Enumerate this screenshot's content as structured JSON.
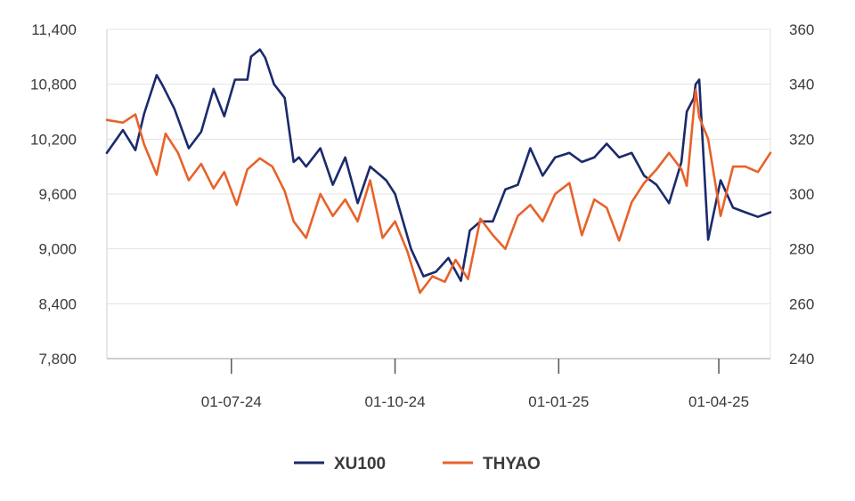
{
  "chart_data": {
    "type": "line",
    "title": "",
    "xlabel": "",
    "ylabel": "",
    "x_ticks": [
      "01-07-24",
      "01-10-24",
      "01-01-25",
      "01-04-25"
    ],
    "x_tick_dates": [
      "2024-07-01",
      "2024-10-01",
      "2025-01-01",
      "2025-04-01"
    ],
    "x_range": [
      "2024-04-22",
      "2025-04-30"
    ],
    "y_left": {
      "range": [
        7800,
        11400
      ],
      "ticks": [
        "7,800",
        "8,400",
        "9,000",
        "9,600",
        "10,200",
        "10,800",
        "11,400"
      ]
    },
    "y_right": {
      "range": [
        240,
        360
      ],
      "ticks": [
        "240",
        "260",
        "280",
        "300",
        "320",
        "340",
        "360"
      ]
    },
    "grid": "horizontal",
    "legend_position": "bottom",
    "series": [
      {
        "name": "XU100",
        "color": "#1b2a6b",
        "axis": "left",
        "x": [
          "2024-04-22",
          "2024-05-01",
          "2024-05-08",
          "2024-05-13",
          "2024-05-20",
          "2024-05-23",
          "2024-05-30",
          "2024-06-07",
          "2024-06-14",
          "2024-06-21",
          "2024-06-27",
          "2024-07-03",
          "2024-07-10",
          "2024-07-12",
          "2024-07-17",
          "2024-07-20",
          "2024-07-25",
          "2024-07-31",
          "2024-08-05",
          "2024-08-08",
          "2024-08-12",
          "2024-08-20",
          "2024-08-27",
          "2024-09-03",
          "2024-09-10",
          "2024-09-17",
          "2024-09-23",
          "2024-09-26",
          "2024-10-01",
          "2024-10-04",
          "2024-10-10",
          "2024-10-17",
          "2024-10-24",
          "2024-10-31",
          "2024-11-07",
          "2024-11-12",
          "2024-11-18",
          "2024-11-25",
          "2024-12-02",
          "2024-12-09",
          "2024-12-16",
          "2024-12-23",
          "2024-12-30",
          "2025-01-07",
          "2025-01-14",
          "2025-01-21",
          "2025-01-28",
          "2025-02-04",
          "2025-02-11",
          "2025-02-18",
          "2025-02-25",
          "2025-03-04",
          "2025-03-11",
          "2025-03-14",
          "2025-03-18",
          "2025-03-19",
          "2025-03-21",
          "2025-03-26",
          "2025-04-02",
          "2025-04-09",
          "2025-04-16",
          "2025-04-23",
          "2025-04-30"
        ],
        "y": [
          10050,
          10300,
          10080,
          10480,
          10900,
          10800,
          10530,
          10100,
          10280,
          10750,
          10450,
          10850,
          10850,
          11100,
          11180,
          11090,
          10800,
          10650,
          9950,
          10000,
          9900,
          10100,
          9700,
          10000,
          9500,
          9900,
          9800,
          9750,
          9600,
          9400,
          9000,
          8700,
          8750,
          8900,
          8650,
          9200,
          9300,
          9300,
          9650,
          9700,
          10100,
          9800,
          10000,
          10050,
          9950,
          10000,
          10150,
          10000,
          10050,
          9800,
          9700,
          9500,
          9950,
          10500,
          10650,
          10800,
          10850,
          9100,
          9750,
          9450,
          9400,
          9350,
          9400
        ]
      },
      {
        "name": "THYAO",
        "color": "#e8622a",
        "axis": "right",
        "x": [
          "2024-04-22",
          "2024-05-01",
          "2024-05-08",
          "2024-05-13",
          "2024-05-20",
          "2024-05-25",
          "2024-06-01",
          "2024-06-07",
          "2024-06-14",
          "2024-06-21",
          "2024-06-27",
          "2024-07-04",
          "2024-07-10",
          "2024-07-17",
          "2024-07-24",
          "2024-07-31",
          "2024-08-05",
          "2024-08-12",
          "2024-08-20",
          "2024-08-27",
          "2024-09-03",
          "2024-09-10",
          "2024-09-17",
          "2024-09-24",
          "2024-10-01",
          "2024-10-08",
          "2024-10-15",
          "2024-10-22",
          "2024-10-29",
          "2024-11-04",
          "2024-11-11",
          "2024-11-18",
          "2024-11-25",
          "2024-12-02",
          "2024-12-09",
          "2024-12-16",
          "2024-12-23",
          "2024-12-30",
          "2025-01-07",
          "2025-01-14",
          "2025-01-21",
          "2025-01-28",
          "2025-02-04",
          "2025-02-11",
          "2025-02-18",
          "2025-02-25",
          "2025-03-04",
          "2025-03-11",
          "2025-03-14",
          "2025-03-18",
          "2025-03-19",
          "2025-03-21",
          "2025-03-26",
          "2025-04-02",
          "2025-04-09",
          "2025-04-16",
          "2025-04-23",
          "2025-04-30"
        ],
        "y": [
          327,
          326,
          329,
          318,
          307,
          322,
          315,
          305,
          311,
          302,
          308,
          296,
          309,
          313,
          310,
          301,
          290,
          284,
          300,
          292,
          298,
          290,
          305,
          284,
          290,
          279,
          264,
          270,
          268,
          276,
          269,
          291,
          285,
          280,
          292,
          296,
          290,
          300,
          304,
          285,
          298,
          295,
          283,
          297,
          304,
          309,
          315,
          309,
          303,
          331,
          338,
          328,
          320,
          292,
          310,
          310,
          308,
          315
        ]
      }
    ]
  }
}
